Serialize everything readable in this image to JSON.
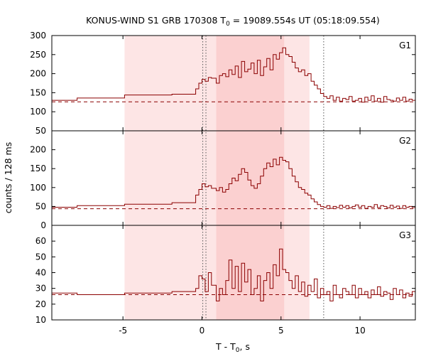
{
  "chart_data": {
    "type": "step-line",
    "title_main": "KONUS-WIND S1 GRB 170308 T",
    "title_sub": "0",
    "title_tail": " = 19089.554s UT (05:18:09.554)",
    "ylabel": "counts / 128 ms",
    "xlabel_main": "T - T",
    "xlabel_sub": "0",
    "xlabel_tail": ", s",
    "xlim": [
      -9.5,
      13.5
    ],
    "x_ticks": [
      -5,
      0,
      5,
      10
    ],
    "x_tick_labels": [
      "-5",
      "0",
      "5",
      "10"
    ],
    "colors": {
      "line": "#8b0000",
      "shade_outer": "#fde5e5",
      "shade_inner": "#fbd0d0",
      "frame": "#000000"
    },
    "shaded_intervals": [
      {
        "from": -4.9,
        "to": 6.8,
        "level": "outer"
      },
      {
        "from": 0.9,
        "to": 5.2,
        "level": "inner"
      }
    ],
    "vertical_lines": [
      0.05,
      0.25,
      7.7
    ],
    "panels": [
      {
        "label": "G1",
        "ylim": [
          50,
          300
        ],
        "y_ticks": [
          50,
          100,
          150,
          200,
          250,
          300
        ],
        "y_tick_labels": [
          "50",
          "100",
          "150",
          "200",
          "250",
          "300"
        ],
        "background": 126,
        "x_edges": [
          -9.5,
          -7.9,
          -4.9,
          -1.9,
          -0.4,
          -0.2,
          0.0,
          0.2,
          0.4,
          0.6,
          0.9,
          1.1,
          1.3,
          1.5,
          1.7,
          1.9,
          2.1,
          2.3,
          2.5,
          2.7,
          2.9,
          3.1,
          3.3,
          3.5,
          3.7,
          3.9,
          4.1,
          4.3,
          4.5,
          4.7,
          4.9,
          5.1,
          5.3,
          5.5,
          5.7,
          5.9,
          6.1,
          6.3,
          6.5,
          6.7,
          6.9,
          7.1,
          7.3,
          7.5,
          7.7,
          7.9,
          8.1,
          8.3,
          8.5,
          8.7,
          8.9,
          9.1,
          9.3,
          9.5,
          9.7,
          9.9,
          10.1,
          10.3,
          10.5,
          10.7,
          10.9,
          11.1,
          11.3,
          11.5,
          11.7,
          11.9,
          12.1,
          12.3,
          12.5,
          12.7,
          12.9,
          13.1,
          13.3,
          13.5
        ],
        "values": [
          130,
          136,
          144,
          146,
          160,
          175,
          185,
          180,
          190,
          188,
          175,
          195,
          200,
          192,
          210,
          198,
          220,
          190,
          232,
          205,
          212,
          228,
          200,
          235,
          195,
          218,
          240,
          210,
          250,
          238,
          255,
          268,
          250,
          245,
          230,
          215,
          205,
          210,
          195,
          200,
          180,
          170,
          160,
          148,
          140,
          135,
          142,
          130,
          138,
          128,
          135,
          132,
          140,
          128,
          130,
          135,
          125,
          138,
          130,
          142,
          128,
          135,
          125,
          140,
          132,
          130,
          128,
          136,
          130,
          138,
          128,
          133,
          130
        ]
      },
      {
        "label": "G2",
        "ylim": [
          0,
          250
        ],
        "y_ticks": [
          0,
          50,
          100,
          150,
          200
        ],
        "y_tick_labels": [
          "0",
          "50",
          "100",
          "150",
          "200"
        ],
        "background": 44,
        "x_edges": [
          -9.5,
          -7.9,
          -4.9,
          -1.9,
          -0.4,
          -0.2,
          0.0,
          0.2,
          0.4,
          0.6,
          0.9,
          1.1,
          1.3,
          1.5,
          1.7,
          1.9,
          2.1,
          2.3,
          2.5,
          2.7,
          2.9,
          3.1,
          3.3,
          3.5,
          3.7,
          3.9,
          4.1,
          4.3,
          4.5,
          4.7,
          4.9,
          5.1,
          5.3,
          5.5,
          5.7,
          5.9,
          6.1,
          6.3,
          6.5,
          6.7,
          6.9,
          7.1,
          7.3,
          7.5,
          7.7,
          7.9,
          8.1,
          8.3,
          8.5,
          8.7,
          8.9,
          9.1,
          9.3,
          9.5,
          9.7,
          9.9,
          10.1,
          10.3,
          10.5,
          10.7,
          10.9,
          11.1,
          11.3,
          11.5,
          11.7,
          11.9,
          12.1,
          12.3,
          12.5,
          12.7,
          12.9,
          13.1,
          13.3,
          13.5
        ],
        "values": [
          48,
          52,
          56,
          60,
          80,
          95,
          110,
          102,
          105,
          98,
          92,
          100,
          88,
          95,
          110,
          125,
          118,
          135,
          150,
          140,
          120,
          105,
          98,
          110,
          130,
          150,
          165,
          155,
          175,
          160,
          180,
          172,
          168,
          150,
          130,
          115,
          100,
          95,
          85,
          80,
          70,
          62,
          55,
          50,
          48,
          52,
          45,
          50,
          47,
          53,
          48,
          52,
          46,
          50,
          54,
          48,
          52,
          45,
          50,
          48,
          55,
          47,
          52,
          50,
          46,
          53,
          48,
          51,
          45,
          52,
          48,
          50,
          47
        ]
      },
      {
        "label": "G3",
        "ylim": [
          10,
          70
        ],
        "y_ticks": [
          10,
          20,
          30,
          40,
          50,
          60
        ],
        "y_tick_labels": [
          "10",
          "20",
          "30",
          "40",
          "50",
          "60"
        ],
        "background": 26,
        "x_edges": [
          -9.5,
          -7.9,
          -4.9,
          -1.9,
          -0.4,
          -0.2,
          0.0,
          0.2,
          0.4,
          0.6,
          0.9,
          1.1,
          1.3,
          1.5,
          1.7,
          1.9,
          2.1,
          2.3,
          2.5,
          2.7,
          2.9,
          3.1,
          3.3,
          3.5,
          3.7,
          3.9,
          4.1,
          4.3,
          4.5,
          4.7,
          4.9,
          5.1,
          5.3,
          5.5,
          5.7,
          5.9,
          6.1,
          6.3,
          6.5,
          6.7,
          6.9,
          7.1,
          7.3,
          7.5,
          7.7,
          7.9,
          8.1,
          8.3,
          8.5,
          8.7,
          8.9,
          9.1,
          9.3,
          9.5,
          9.7,
          9.9,
          10.1,
          10.3,
          10.5,
          10.7,
          10.9,
          11.1,
          11.3,
          11.5,
          11.7,
          11.9,
          12.1,
          12.3,
          12.5,
          12.7,
          12.9,
          13.1,
          13.3,
          13.5
        ],
        "values": [
          27,
          26,
          27,
          28,
          30,
          38,
          36,
          28,
          40,
          32,
          22,
          30,
          26,
          35,
          48,
          30,
          44,
          28,
          46,
          34,
          42,
          26,
          30,
          38,
          22,
          35,
          40,
          30,
          45,
          38,
          55,
          42,
          40,
          35,
          30,
          38,
          28,
          34,
          25,
          32,
          28,
          36,
          24,
          30,
          26,
          28,
          22,
          32,
          26,
          24,
          30,
          28,
          26,
          32,
          24,
          30,
          26,
          28,
          24,
          29,
          26,
          31,
          25,
          28,
          27,
          23,
          30,
          26,
          29,
          24,
          27,
          25,
          28
        ]
      }
    ]
  }
}
